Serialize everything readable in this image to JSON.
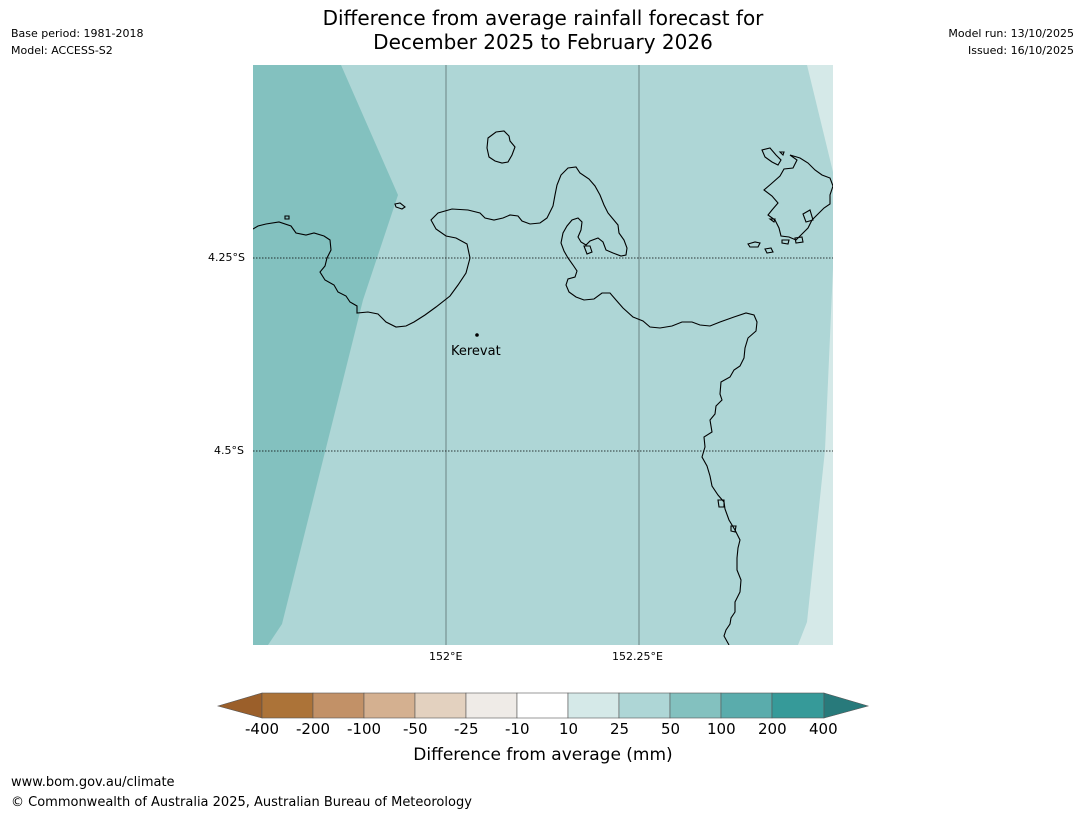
{
  "header": {
    "title_line1": "Difference from average rainfall forecast for",
    "title_line2": "December 2025 to February 2026",
    "base_period": "Base period: 1981-2018",
    "model": "Model: ACCESS-S2",
    "model_run": "Model run: 13/10/2025",
    "issued": "Issued: 16/10/2025"
  },
  "map": {
    "latitude_labels": [
      "4.25°S",
      "4.5°S"
    ],
    "longitude_labels": [
      "152°E",
      "152.25°E"
    ],
    "place_label": "Kerevat",
    "colors": {
      "zone_100_to_200": "#83c1bf",
      "zone_50_to_100": "#aed6d6",
      "zone_25_to_50": "#d5e9e8",
      "coastline": "#000000",
      "gridline": "#000000"
    }
  },
  "colorbar": {
    "title": "Difference from average (mm)",
    "tick_labels": [
      "-400",
      "-200",
      "-100",
      "-50",
      "-25",
      "-10",
      "10",
      "25",
      "50",
      "100",
      "200",
      "400"
    ],
    "colors": [
      "#9b5f2a",
      "#ac7338",
      "#c29167",
      "#d4b090",
      "#e3d1bf",
      "#efebe7",
      "#ffffff",
      "#d5e9e8",
      "#aed6d6",
      "#83c1bf",
      "#5aacac",
      "#369a99",
      "#287a7b"
    ]
  },
  "footer": {
    "url": "www.bom.gov.au/climate",
    "copyright": "© Commonwealth of Australia 2025, Australian Bureau of Meteorology"
  }
}
